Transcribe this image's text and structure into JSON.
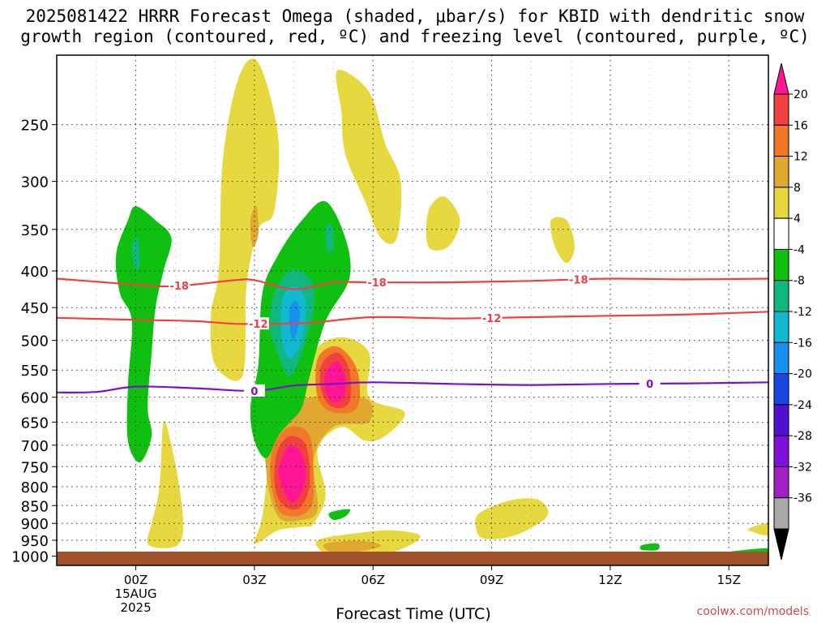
{
  "chart_data": {
    "type": "contour",
    "title_line1": "2025081422 HRRR Forecast Omega (shaded, μbar/s) for KBID with dendritic snow",
    "title_line2": "growth region (contoured, red, ºC) and freezing level (contoured, purple, ºC)",
    "xlabel": "Forecast Time (UTC)",
    "x_ticks": [
      {
        "hour": 0,
        "label": "00Z",
        "sub1": "15AUG",
        "sub2": "2025"
      },
      {
        "hour": 3,
        "label": "03Z",
        "sub1": "",
        "sub2": ""
      },
      {
        "hour": 6,
        "label": "06Z",
        "sub1": "",
        "sub2": ""
      },
      {
        "hour": 9,
        "label": "09Z",
        "sub1": "",
        "sub2": ""
      },
      {
        "hour": 12,
        "label": "12Z",
        "sub1": "",
        "sub2": ""
      },
      {
        "hour": 15,
        "label": "15Z",
        "sub1": "",
        "sub2": ""
      }
    ],
    "x_range_hours": [
      -2,
      16
    ],
    "y_axis": "pressure (hPa), log scale, inverted",
    "y_range": [
      200,
      1030
    ],
    "y_ticks": [
      250,
      300,
      350,
      400,
      450,
      500,
      550,
      600,
      650,
      700,
      750,
      800,
      850,
      900,
      950,
      1000
    ],
    "grid": true,
    "colorbar": {
      "labels": [
        "20",
        "16",
        "12",
        "8",
        "4",
        "-4",
        "-8",
        "-12",
        "-16",
        "-20",
        "-24",
        "-28",
        "-32",
        "-36"
      ],
      "colors": [
        "#ff1493",
        "#f04040",
        "#f07828",
        "#e0a830",
        "#e8d840",
        "#ffffff",
        "#10c010",
        "#10b880",
        "#10b8d0",
        "#1890f0",
        "#1848e0",
        "#5010d0",
        "#8010d8",
        "#a020c0",
        "#a8a8a8",
        "#000000"
      ]
    },
    "omega_regions": [
      {
        "value": 4,
        "color": "#e8d840",
        "points": [
          [
            0.7,
            650
          ],
          [
            0.9,
            700
          ],
          [
            1.1,
            800
          ],
          [
            1.2,
            900
          ],
          [
            1.1,
            960
          ],
          [
            0.7,
            975
          ],
          [
            0.3,
            960
          ],
          [
            0.4,
            900
          ],
          [
            0.6,
            800
          ]
        ]
      },
      {
        "value": 4,
        "color": "#e8d840",
        "points": [
          [
            0.2,
            470
          ],
          [
            0.4,
            500
          ],
          [
            0.3,
            560
          ],
          [
            0.1,
            540
          ],
          [
            0.1,
            490
          ]
        ]
      },
      {
        "value": 4,
        "color": "#e8d840",
        "points": [
          [
            2.1,
            400
          ],
          [
            2.2,
            280
          ],
          [
            2.6,
            215
          ],
          [
            3.1,
            205
          ],
          [
            3.6,
            260
          ],
          [
            3.5,
            330
          ],
          [
            3.1,
            350
          ],
          [
            2.8,
            420
          ],
          [
            2.7,
            560
          ],
          [
            2.0,
            540
          ],
          [
            1.9,
            460
          ]
        ]
      },
      {
        "value": 4,
        "color": "#e8d840",
        "points": [
          [
            5.1,
            210
          ],
          [
            5.9,
            225
          ],
          [
            6.3,
            265
          ],
          [
            6.7,
            300
          ],
          [
            6.6,
            360
          ],
          [
            6.2,
            360
          ],
          [
            5.8,
            320
          ],
          [
            5.3,
            275
          ],
          [
            5.2,
            240
          ]
        ]
      },
      {
        "value": 4,
        "color": "#e8d840",
        "points": [
          [
            7.4,
            330
          ],
          [
            7.8,
            315
          ],
          [
            8.2,
            340
          ],
          [
            7.9,
            370
          ],
          [
            7.4,
            370
          ]
        ]
      },
      {
        "value": 4,
        "color": "#e8d840",
        "points": [
          [
            10.5,
            340
          ],
          [
            10.9,
            340
          ],
          [
            11.1,
            370
          ],
          [
            10.9,
            390
          ],
          [
            10.6,
            370
          ]
        ]
      },
      {
        "value": 4,
        "color": "#e8d840",
        "points": [
          [
            4.5,
            520
          ],
          [
            5.2,
            495
          ],
          [
            5.9,
            520
          ],
          [
            5.9,
            600
          ],
          [
            6.8,
            630
          ],
          [
            6.3,
            680
          ],
          [
            5.8,
            690
          ],
          [
            5.2,
            660
          ],
          [
            4.6,
            710
          ],
          [
            4.8,
            820
          ],
          [
            4.5,
            900
          ],
          [
            4.2,
            910
          ],
          [
            3.6,
            920
          ],
          [
            3.2,
            950
          ],
          [
            3.0,
            955
          ],
          [
            3.2,
            880
          ],
          [
            3.4,
            720
          ],
          [
            3.7,
            640
          ],
          [
            4.2,
            620
          ]
        ]
      },
      {
        "value": 4,
        "color": "#e8d840",
        "points": [
          [
            4.6,
            950
          ],
          [
            5.5,
            930
          ],
          [
            6.5,
            920
          ],
          [
            7.2,
            940
          ],
          [
            6.4,
            990
          ],
          [
            5.0,
            1000
          ],
          [
            4.7,
            985
          ]
        ]
      },
      {
        "value": 4,
        "color": "#e8d840",
        "points": [
          [
            8.7,
            870
          ],
          [
            9.5,
            835
          ],
          [
            10.2,
            835
          ],
          [
            10.4,
            880
          ],
          [
            9.6,
            935
          ],
          [
            8.8,
            945
          ],
          [
            8.6,
            910
          ]
        ]
      },
      {
        "value": 4,
        "color": "#e8d840",
        "points": [
          [
            15.5,
            915
          ],
          [
            16,
            900
          ],
          [
            16,
            935
          ],
          [
            15.6,
            925
          ]
        ]
      },
      {
        "value": 8,
        "color": "#e0a830",
        "points": [
          [
            3.45,
            620
          ],
          [
            5.7,
            600
          ],
          [
            5.9,
            650
          ],
          [
            5.0,
            660
          ],
          [
            4.5,
            730
          ],
          [
            4.6,
            860
          ],
          [
            4.2,
            890
          ],
          [
            3.6,
            880
          ],
          [
            3.3,
            760
          ]
        ]
      },
      {
        "value": 8,
        "color": "#e0a830",
        "points": [
          [
            2.9,
            340
          ],
          [
            3.05,
            325
          ],
          [
            3.1,
            355
          ],
          [
            2.95,
            370
          ]
        ]
      },
      {
        "value": 8,
        "color": "#e0a830",
        "points": [
          [
            4.8,
            960
          ],
          [
            5.7,
            952
          ],
          [
            6.2,
            968
          ],
          [
            5.4,
            990
          ],
          [
            4.9,
            985
          ]
        ]
      },
      {
        "value": 12,
        "color": "#f07828",
        "points": [
          [
            3.5,
            700
          ],
          [
            3.9,
            660
          ],
          [
            4.4,
            680
          ],
          [
            4.5,
            800
          ],
          [
            4.4,
            860
          ],
          [
            4.0,
            880
          ],
          [
            3.6,
            860
          ],
          [
            3.4,
            770
          ]
        ]
      },
      {
        "value": 12,
        "color": "#f07828",
        "points": [
          [
            4.6,
            530
          ],
          [
            5.1,
            510
          ],
          [
            5.6,
            550
          ],
          [
            5.6,
            620
          ],
          [
            5.0,
            630
          ],
          [
            4.6,
            600
          ]
        ]
      },
      {
        "value": 16,
        "color": "#f04040",
        "points": [
          [
            3.6,
            710
          ],
          [
            3.9,
            680
          ],
          [
            4.3,
            700
          ],
          [
            4.4,
            790
          ],
          [
            4.2,
            850
          ],
          [
            3.9,
            860
          ],
          [
            3.6,
            830
          ],
          [
            3.5,
            770
          ]
        ]
      },
      {
        "value": 16,
        "color": "#f04040",
        "points": [
          [
            4.7,
            540
          ],
          [
            5.1,
            520
          ],
          [
            5.4,
            550
          ],
          [
            5.4,
            610
          ],
          [
            5.0,
            620
          ],
          [
            4.7,
            590
          ]
        ]
      },
      {
        "value": 20,
        "color": "#ff1493",
        "points": [
          [
            3.7,
            730
          ],
          [
            3.9,
            700
          ],
          [
            4.2,
            720
          ],
          [
            4.3,
            780
          ],
          [
            4.1,
            830
          ],
          [
            3.9,
            840
          ],
          [
            3.7,
            800
          ],
          [
            3.6,
            760
          ]
        ]
      },
      {
        "value": 20,
        "color": "#ff1493",
        "points": [
          [
            4.8,
            555
          ],
          [
            5.1,
            535
          ],
          [
            5.3,
            565
          ],
          [
            5.25,
            600
          ],
          [
            5.0,
            610
          ],
          [
            4.8,
            590
          ]
        ]
      },
      {
        "value": -4,
        "color": "#10c010",
        "points": [
          [
            -0.5,
            380
          ],
          [
            -0.2,
            340
          ],
          [
            0,
            325
          ],
          [
            0.5,
            340
          ],
          [
            0.9,
            360
          ],
          [
            0.7,
            400
          ],
          [
            0.5,
            450
          ],
          [
            0.4,
            520
          ],
          [
            0.3,
            620
          ],
          [
            0.4,
            680
          ],
          [
            0.1,
            740
          ],
          [
            -0.2,
            690
          ],
          [
            -0.2,
            580
          ],
          [
            -0.1,
            470
          ],
          [
            -0.4,
            430
          ]
        ]
      },
      {
        "value": -4,
        "color": "#10c010",
        "points": [
          [
            3.2,
            430
          ],
          [
            3.6,
            380
          ],
          [
            4.2,
            340
          ],
          [
            4.8,
            320
          ],
          [
            5.3,
            360
          ],
          [
            5.4,
            410
          ],
          [
            4.8,
            470
          ],
          [
            4.4,
            560
          ],
          [
            4.2,
            620
          ],
          [
            3.9,
            650
          ],
          [
            3.6,
            680
          ],
          [
            3.3,
            730
          ],
          [
            3.0,
            690
          ],
          [
            2.9,
            620
          ],
          [
            3.1,
            540
          ]
        ]
      },
      {
        "value": -4,
        "color": "#10c010",
        "points": [
          [
            4.9,
            870
          ],
          [
            5.4,
            860
          ],
          [
            5.3,
            880
          ],
          [
            5.0,
            890
          ]
        ]
      },
      {
        "value": -4,
        "color": "#10c010",
        "points": [
          [
            12.8,
            965
          ],
          [
            13.2,
            960
          ],
          [
            13.2,
            980
          ],
          [
            12.8,
            980
          ]
        ]
      },
      {
        "value": -4,
        "color": "#10c010",
        "points": [
          [
            14.5,
            995
          ],
          [
            16,
            975
          ],
          [
            16,
            1010
          ],
          [
            14.5,
            1010
          ]
        ]
      },
      {
        "value": -8,
        "color": "#10b880",
        "points": [
          [
            3.5,
            430
          ],
          [
            3.9,
            400
          ],
          [
            4.4,
            410
          ],
          [
            4.5,
            450
          ],
          [
            4.2,
            520
          ],
          [
            3.9,
            560
          ],
          [
            3.7,
            540
          ],
          [
            3.4,
            480
          ]
        ]
      },
      {
        "value": -8,
        "color": "#10b880",
        "points": [
          [
            -0.1,
            370
          ],
          [
            0.05,
            360
          ],
          [
            0.1,
            390
          ],
          [
            0.0,
            400
          ]
        ]
      },
      {
        "value": -8,
        "color": "#10b880",
        "points": [
          [
            4.8,
            350
          ],
          [
            4.95,
            345
          ],
          [
            5.0,
            370
          ],
          [
            4.85,
            375
          ]
        ]
      },
      {
        "value": -12,
        "color": "#10b8d0",
        "points": [
          [
            3.7,
            440
          ],
          [
            4.0,
            420
          ],
          [
            4.3,
            440
          ],
          [
            4.2,
            500
          ],
          [
            3.9,
            530
          ],
          [
            3.7,
            500
          ]
        ]
      },
      {
        "value": -16,
        "color": "#1890f0",
        "points": [
          [
            3.9,
            450
          ],
          [
            4.05,
            440
          ],
          [
            4.15,
            460
          ],
          [
            4.0,
            500
          ],
          [
            3.9,
            480
          ]
        ]
      }
    ],
    "isotherms": [
      {
        "value": -18,
        "color": "#f04040",
        "label": "-18",
        "label_x": [
          1.1,
          6.1,
          11.2
        ],
        "points": [
          [
            -2,
            410
          ],
          [
            0,
            418
          ],
          [
            1.0,
            420
          ],
          [
            2.5,
            412
          ],
          [
            3.0,
            412
          ],
          [
            4.0,
            424
          ],
          [
            5.0,
            415
          ],
          [
            6.0,
            415
          ],
          [
            8.0,
            415
          ],
          [
            10.0,
            413
          ],
          [
            12.0,
            410
          ],
          [
            14.0,
            411
          ],
          [
            16,
            410
          ]
        ]
      },
      {
        "value": -12,
        "color": "#f04040",
        "label": "-12",
        "label_x": [
          3.1,
          9.0
        ],
        "points": [
          [
            -2,
            465
          ],
          [
            0,
            468
          ],
          [
            1.5,
            470
          ],
          [
            2.5,
            474
          ],
          [
            3.5,
            474
          ],
          [
            4.5,
            472
          ],
          [
            6.0,
            464
          ],
          [
            8.0,
            466
          ],
          [
            10.0,
            464
          ],
          [
            12.0,
            462
          ],
          [
            14.0,
            460
          ],
          [
            16,
            456
          ]
        ]
      },
      {
        "value": 0,
        "color": "#8010c8",
        "label": "0",
        "label_x": [
          3.0,
          13.0
        ],
        "points": [
          [
            -2,
            591
          ],
          [
            -1,
            590
          ],
          [
            0,
            580
          ],
          [
            1.5,
            583
          ],
          [
            3.0,
            588
          ],
          [
            4.0,
            578
          ],
          [
            5.0,
            575
          ],
          [
            6.0,
            572
          ],
          [
            8.0,
            575
          ],
          [
            10.0,
            577
          ],
          [
            12.0,
            575
          ],
          [
            14.0,
            574
          ],
          [
            16,
            572
          ]
        ]
      }
    ],
    "surface_color": "#a0522d",
    "credit": "coolwx.com/models"
  }
}
